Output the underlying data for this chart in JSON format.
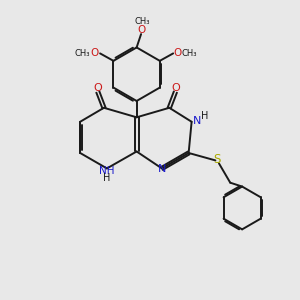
{
  "background_color": "#e8e8e8",
  "bond_color": "#1a1a1a",
  "nitrogen_color": "#1a1acc",
  "oxygen_color": "#cc1a1a",
  "sulfur_color": "#aaaa00",
  "figsize": [
    3.0,
    3.0
  ],
  "dpi": 100,
  "xlim": [
    0,
    10
  ],
  "ylim": [
    0,
    10
  ]
}
